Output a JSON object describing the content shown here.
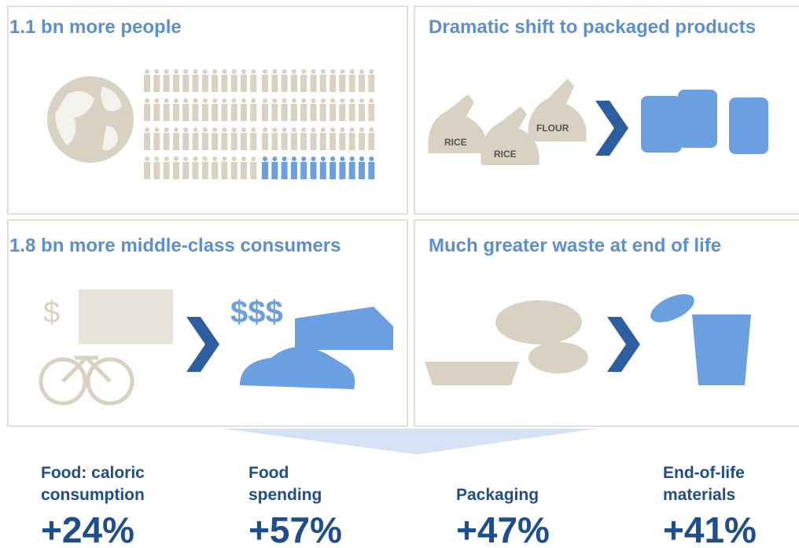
{
  "panels": [
    {
      "title": "1.1 bn more people"
    },
    {
      "title": "Dramatic shift to packaged products",
      "labels": [
        "RICE",
        "RICE",
        "FLOUR"
      ]
    },
    {
      "title": "1.8 bn more middle-class consumers",
      "labels": [
        "$",
        "$$$"
      ]
    },
    {
      "title": "Much greater waste at end of life"
    }
  ],
  "stats": [
    {
      "label": [
        "Food: caloric",
        "consumption"
      ],
      "value": "+24%"
    },
    {
      "label": [
        "Food",
        "spending"
      ],
      "value": "+57%"
    },
    {
      "label": [
        "Packaging"
      ],
      "value": "+47%"
    },
    {
      "label": [
        "End-of-life",
        "materials"
      ],
      "value": "+41%"
    }
  ]
}
